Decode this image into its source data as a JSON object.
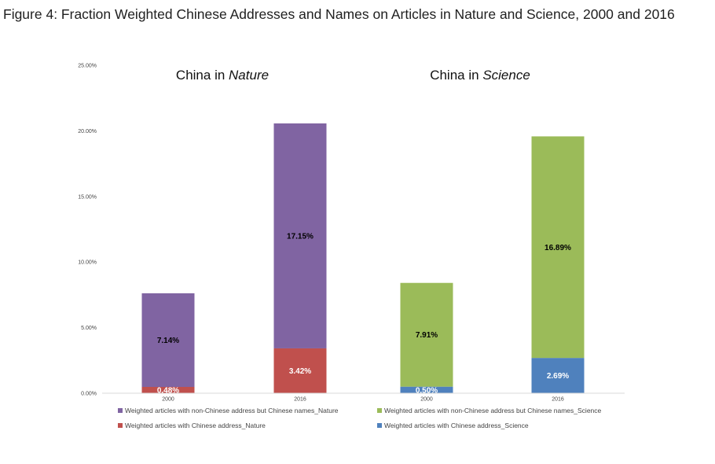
{
  "figure": {
    "title": "Figure 4: Fraction Weighted Chinese Addresses and Names on Articles in Nature and Science, 2000 and 2016"
  },
  "colors": {
    "nature_names": "#8064a2",
    "nature_address": "#c0504d",
    "science_names": "#9bbb59",
    "science_address": "#4f81bd",
    "axis": "#d9d9d9"
  },
  "chart_data": {
    "type": "bar",
    "stacked": true,
    "ylim": [
      0,
      25
    ],
    "yticks": [
      0,
      5,
      10,
      15,
      20,
      25
    ],
    "ytick_labels": [
      "0.00%",
      "5.00%",
      "10.00%",
      "15.00%",
      "20.00%",
      "25.00%"
    ],
    "panels": [
      {
        "title_prefix": "China in ",
        "title_emph": "Nature",
        "categories": [
          "2000",
          "2016"
        ],
        "series": [
          {
            "name": "Weighted articles with Chinese address_Nature",
            "color": "#c0504d",
            "values": [
              0.48,
              3.42
            ],
            "labels": [
              "0.48%",
              "3.42%"
            ],
            "label_color": "#ffffff"
          },
          {
            "name": "Weighted articles with non-Chinese address but Chinese names_Nature",
            "color": "#8064a2",
            "values": [
              7.14,
              17.15
            ],
            "labels": [
              "7.14%",
              "17.15%"
            ],
            "label_color": "#000000"
          }
        ]
      },
      {
        "title_prefix": "China in ",
        "title_emph": "Science",
        "categories": [
          "2000",
          "2016"
        ],
        "series": [
          {
            "name": "Weighted articles with Chinese address_Science",
            "color": "#4f81bd",
            "values": [
              0.5,
              2.69
            ],
            "labels": [
              "0.50%",
              "2.69%"
            ],
            "label_color": "#ffffff"
          },
          {
            "name": "Weighted articles with non-Chinese address but Chinese names_Science",
            "color": "#9bbb59",
            "values": [
              7.91,
              16.89
            ],
            "labels": [
              "7.91%",
              "16.89%"
            ],
            "label_color": "#000000"
          }
        ]
      }
    ],
    "legend": [
      {
        "label": "Weighted articles with non-Chinese address but Chinese names_Nature",
        "color": "#8064a2"
      },
      {
        "label": "Weighted articles with non-Chinese address but Chinese names_Science",
        "color": "#9bbb59"
      },
      {
        "label": "Weighted articles with Chinese address_Nature",
        "color": "#c0504d"
      },
      {
        "label": "Weighted articles with Chinese address_Science",
        "color": "#4f81bd"
      }
    ],
    "legend_position": "bottom",
    "grid": false
  }
}
